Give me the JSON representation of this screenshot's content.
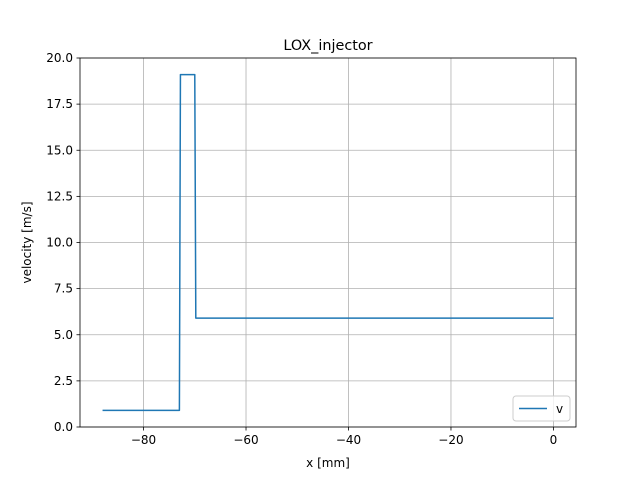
{
  "chart_data": {
    "type": "line",
    "title": "LOX_injector",
    "xlabel": "x [mm]",
    "ylabel": "velocity [m/s]",
    "xlim": [
      -92.4,
      4.4
    ],
    "ylim": [
      0,
      20
    ],
    "xticks": [
      -80,
      -60,
      -40,
      -20,
      0
    ],
    "xtick_labels": [
      "−80",
      "−60",
      "−40",
      "−20",
      "0"
    ],
    "yticks": [
      0,
      2.5,
      5,
      7.5,
      10,
      12.5,
      15,
      17.5,
      20
    ],
    "ytick_labels": [
      "0.0",
      "2.5",
      "5.0",
      "7.5",
      "10.0",
      "12.5",
      "15.0",
      "17.5",
      "20.0"
    ],
    "grid": true,
    "legend_position": "lower right",
    "series": [
      {
        "name": "v",
        "color": "#1f77b4",
        "x": [
          -88.0,
          -73.0,
          -72.8,
          -70.0,
          -69.8,
          0.0
        ],
        "y": [
          0.9,
          0.9,
          19.1,
          19.1,
          5.9,
          5.9
        ]
      }
    ]
  }
}
